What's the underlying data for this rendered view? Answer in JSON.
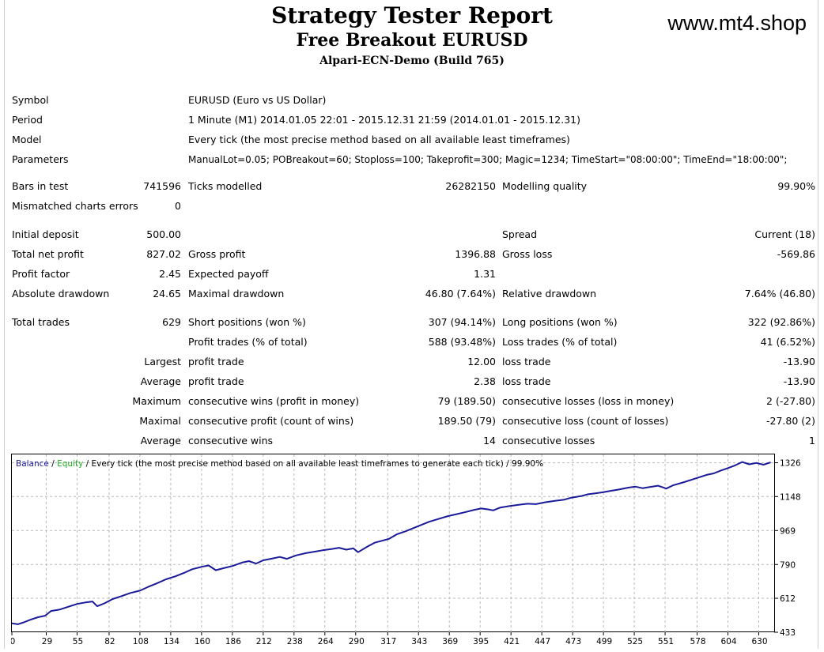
{
  "header": {
    "title": "Strategy Tester Report",
    "subtitle": "Free Breakout EURUSD",
    "server": "Alpari-ECN-Demo (Build 765)",
    "watermark": "www.mt4.shop"
  },
  "info": {
    "symbol_label": "Symbol",
    "symbol_value": "EURUSD (Euro vs US Dollar)",
    "period_label": "Period",
    "period_value": "1 Minute (M1) 2014.01.05 22:01 - 2015.12.31 21:59 (2014.01.01 - 2015.12.31)",
    "model_label": "Model",
    "model_value": "Every tick (the most precise method based on all available least timeframes)",
    "parameters_label": "Parameters",
    "parameters_value": "ManualLot=0.05; POBreakout=60; Stoploss=100; Takeprofit=300; Magic=1234; TimeStart=\"08:00:00\"; TimeEnd=\"18:00:00\";"
  },
  "test": {
    "bars_label": "Bars in test",
    "bars_value": "741596",
    "ticks_label": "Ticks modelled",
    "ticks_value": "26282150",
    "quality_label": "Modelling quality",
    "quality_value": "99.90%",
    "mismatch_label": "Mismatched charts errors",
    "mismatch_value": "0"
  },
  "results": {
    "initial_deposit_label": "Initial deposit",
    "initial_deposit_value": "500.00",
    "spread_label": "Spread",
    "spread_value": "Current (18)",
    "net_profit_label": "Total net profit",
    "net_profit_value": "827.02",
    "gross_profit_label": "Gross profit",
    "gross_profit_value": "1396.88",
    "gross_loss_label": "Gross loss",
    "gross_loss_value": "-569.86",
    "profit_factor_label": "Profit factor",
    "profit_factor_value": "2.45",
    "expected_payoff_label": "Expected payoff",
    "expected_payoff_value": "1.31",
    "abs_dd_label": "Absolute drawdown",
    "abs_dd_value": "24.65",
    "max_dd_label": "Maximal drawdown",
    "max_dd_value": "46.80 (7.64%)",
    "rel_dd_label": "Relative drawdown",
    "rel_dd_value": "7.64% (46.80)"
  },
  "trades": {
    "total_label": "Total trades",
    "total_value": "629",
    "short_label": "Short positions (won %)",
    "short_value": "307 (94.14%)",
    "long_label": "Long positions (won %)",
    "long_value": "322 (92.86%)",
    "profit_trades_label": "Profit trades (% of total)",
    "profit_trades_value": "588 (93.48%)",
    "loss_trades_label": "Loss trades (% of total)",
    "loss_trades_value": "41 (6.52%)",
    "largest_label": "Largest",
    "largest_profit_label": "profit trade",
    "largest_profit_value": "12.00",
    "largest_loss_label": "loss trade",
    "largest_loss_value": "-13.90",
    "average_label": "Average",
    "average_profit_label": "profit trade",
    "average_profit_value": "2.38",
    "average_loss_label": "loss trade",
    "average_loss_value": "-13.90",
    "maximum_label": "Maximum",
    "max_cons_wins_label": "consecutive wins (profit in money)",
    "max_cons_wins_value": "79 (189.50)",
    "max_cons_losses_label": "consecutive losses (loss in money)",
    "max_cons_losses_value": "2 (-27.80)",
    "maximal_label": "Maximal",
    "maximal_cons_profit_label": "consecutive profit (count of wins)",
    "maximal_cons_profit_value": "189.50 (79)",
    "maximal_cons_loss_label": "consecutive loss (count of losses)",
    "maximal_cons_loss_value": "-27.80 (2)",
    "average2_label": "Average",
    "avg_cons_wins_label": "consecutive wins",
    "avg_cons_wins_value": "14",
    "avg_cons_losses_label": "consecutive losses",
    "avg_cons_losses_value": "1"
  },
  "chart_data": {
    "type": "line",
    "legend": {
      "balance": "Balance",
      "sep1": " / ",
      "equity": "Equity",
      "rest": " / Every tick (the most precise method based on all available least timeframes to generate each tick) / 99.90%"
    },
    "colors": {
      "balance": "#1a1a9a",
      "equity": "#22aa22",
      "grid": "#b8b8b8",
      "frame": "#000000"
    },
    "x_ticks": [
      0,
      29,
      55,
      82,
      108,
      134,
      160,
      186,
      212,
      238,
      264,
      290,
      317,
      343,
      369,
      395,
      421,
      447,
      473,
      499,
      525,
      551,
      578,
      604,
      630
    ],
    "y_ticks": [
      433,
      612,
      790,
      969,
      1148,
      1326
    ],
    "xlim": [
      0,
      643
    ],
    "ylim": [
      433,
      1370
    ],
    "series": [
      {
        "name": "Balance",
        "x": [
          0,
          5,
          10,
          16,
          22,
          28,
          33,
          40,
          48,
          55,
          62,
          68,
          72,
          78,
          85,
          92,
          100,
          108,
          115,
          122,
          130,
          138,
          146,
          152,
          160,
          166,
          172,
          178,
          186,
          194,
          200,
          206,
          212,
          220,
          226,
          232,
          240,
          248,
          256,
          262,
          270,
          276,
          282,
          288,
          292,
          300,
          306,
          312,
          318,
          325,
          332,
          340,
          346,
          352,
          360,
          368,
          375,
          382,
          390,
          396,
          402,
          406,
          412,
          420,
          428,
          435,
          442,
          450,
          458,
          466,
          472,
          480,
          486,
          492,
          498,
          505,
          512,
          520,
          526,
          532,
          538,
          545,
          552,
          558,
          566,
          574,
          580,
          586,
          592,
          598,
          604,
          610,
          616,
          622,
          628,
          634,
          640
        ],
        "y": [
          480,
          475,
          485,
          500,
          512,
          520,
          545,
          552,
          568,
          582,
          590,
          595,
          570,
          585,
          608,
          622,
          640,
          652,
          672,
          690,
          712,
          728,
          748,
          765,
          778,
          785,
          760,
          770,
          782,
          800,
          808,
          795,
          812,
          822,
          830,
          820,
          838,
          850,
          858,
          865,
          872,
          878,
          868,
          875,
          855,
          885,
          905,
          915,
          925,
          950,
          965,
          985,
          1000,
          1015,
          1030,
          1045,
          1055,
          1065,
          1078,
          1085,
          1080,
          1075,
          1090,
          1098,
          1105,
          1110,
          1108,
          1118,
          1125,
          1132,
          1142,
          1150,
          1160,
          1165,
          1170,
          1178,
          1185,
          1195,
          1200,
          1192,
          1198,
          1205,
          1190,
          1208,
          1222,
          1238,
          1250,
          1262,
          1270,
          1285,
          1298,
          1312,
          1330,
          1318,
          1325,
          1316,
          1328
        ]
      }
    ]
  }
}
